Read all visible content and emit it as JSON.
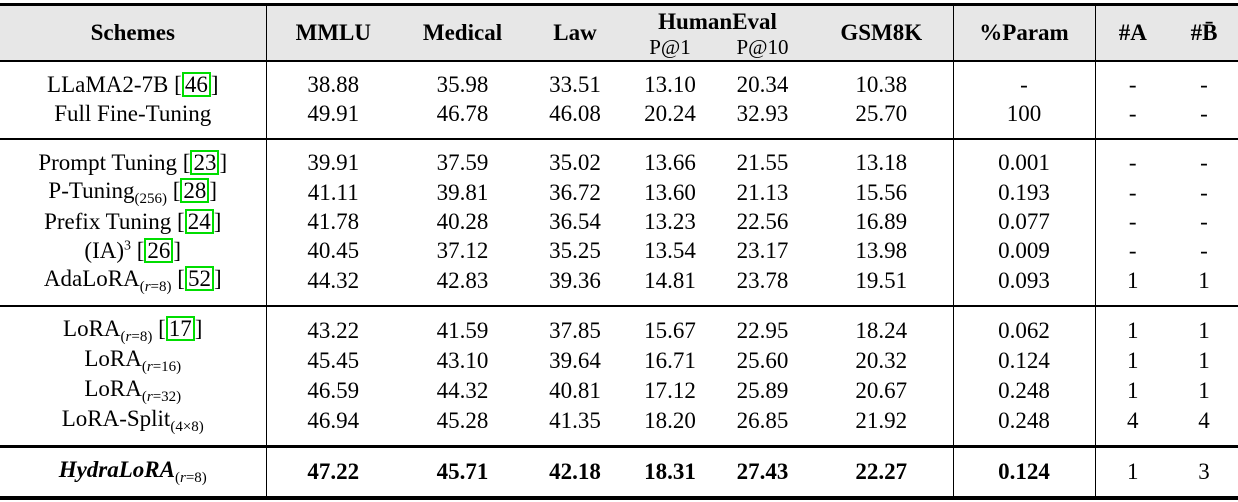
{
  "colors": {
    "header_bg": "#e7e7e7",
    "citation_border": "#00dd00",
    "rule": "#000000",
    "text": "#000000"
  },
  "header": {
    "schemes": "Schemes",
    "mmlu": "MMLU",
    "medical": "Medical",
    "law": "Law",
    "humaneval": "HumanEval",
    "p1": "P@1",
    "p10": "P@10",
    "gsm8k": "GSM8K",
    "param": "%Param",
    "num_a": "#A",
    "num_b": "#B̄"
  },
  "citation": {
    "open": "[",
    "close": "]"
  },
  "groups": [
    {
      "rows": [
        {
          "name": "LLaMA2-7B",
          "sub": "",
          "sup": "",
          "cite": "46",
          "style": "normal",
          "bold_values": 0,
          "values": [
            "38.88",
            "35.98",
            "33.51",
            "13.10",
            "20.34",
            "10.38",
            "-",
            "-",
            "-"
          ]
        },
        {
          "name": "Full Fine-Tuning",
          "sub": "",
          "sup": "",
          "cite": "",
          "style": "normal",
          "bold_values": 0,
          "values": [
            "49.91",
            "46.78",
            "46.08",
            "20.24",
            "32.93",
            "25.70",
            "100",
            "-",
            "-"
          ]
        }
      ]
    },
    {
      "rows": [
        {
          "name": "Prompt Tuning",
          "sub": "",
          "sup": "",
          "cite": "23",
          "style": "normal",
          "bold_values": 0,
          "values": [
            "39.91",
            "37.59",
            "35.02",
            "13.66",
            "21.55",
            "13.18",
            "0.001",
            "-",
            "-"
          ]
        },
        {
          "name": "P-Tuning",
          "sub": "(256)",
          "sup": "",
          "cite": "28",
          "style": "normal",
          "bold_values": 0,
          "values": [
            "41.11",
            "39.81",
            "36.72",
            "13.60",
            "21.13",
            "15.56",
            "0.193",
            "-",
            "-"
          ]
        },
        {
          "name": "Prefix Tuning",
          "sub": "",
          "sup": "",
          "cite": "24",
          "style": "normal",
          "bold_values": 0,
          "values": [
            "41.78",
            "40.28",
            "36.54",
            "13.23",
            "22.56",
            "16.89",
            "0.077",
            "-",
            "-"
          ]
        },
        {
          "name": "(IA)",
          "sub": "",
          "sup": "3",
          "cite": "26",
          "style": "normal",
          "bold_values": 0,
          "values": [
            "40.45",
            "37.12",
            "35.25",
            "13.54",
            "23.17",
            "13.98",
            "0.009",
            "-",
            "-"
          ]
        },
        {
          "name": "AdaLoRA",
          "sub": "(r=8)",
          "sup": "",
          "cite": "52",
          "style": "normal",
          "bold_values": 0,
          "values": [
            "44.32",
            "42.83",
            "39.36",
            "14.81",
            "23.78",
            "19.51",
            "0.093",
            "1",
            "1"
          ]
        }
      ]
    },
    {
      "rows": [
        {
          "name": "LoRA",
          "sub": "(r=8)",
          "sup": "",
          "cite": "17",
          "style": "normal",
          "bold_values": 0,
          "values": [
            "43.22",
            "41.59",
            "37.85",
            "15.67",
            "22.95",
            "18.24",
            "0.062",
            "1",
            "1"
          ]
        },
        {
          "name": "LoRA",
          "sub": "(r=16)",
          "sup": "",
          "cite": "",
          "style": "normal",
          "bold_values": 0,
          "values": [
            "45.45",
            "43.10",
            "39.64",
            "16.71",
            "25.60",
            "20.32",
            "0.124",
            "1",
            "1"
          ]
        },
        {
          "name": "LoRA",
          "sub": "(r=32)",
          "sup": "",
          "cite": "",
          "style": "normal",
          "bold_values": 0,
          "values": [
            "46.59",
            "44.32",
            "40.81",
            "17.12",
            "25.89",
            "20.67",
            "0.248",
            "1",
            "1"
          ]
        },
        {
          "name": "LoRA-Split",
          "sub": "(4×8)",
          "sup": "",
          "cite": "",
          "style": "normal",
          "bold_values": 0,
          "values": [
            "46.94",
            "45.28",
            "41.35",
            "18.20",
            "26.85",
            "21.92",
            "0.248",
            "4",
            "4"
          ]
        }
      ]
    },
    {
      "rows": [
        {
          "name": "HydraLoRA",
          "sub": "(r=8)",
          "sup": "",
          "cite": "",
          "style": "bold-italic",
          "bold_values": 7,
          "values": [
            "47.22",
            "45.71",
            "42.18",
            "18.31",
            "27.43",
            "22.27",
            "0.124",
            "1",
            "3"
          ]
        }
      ]
    }
  ]
}
